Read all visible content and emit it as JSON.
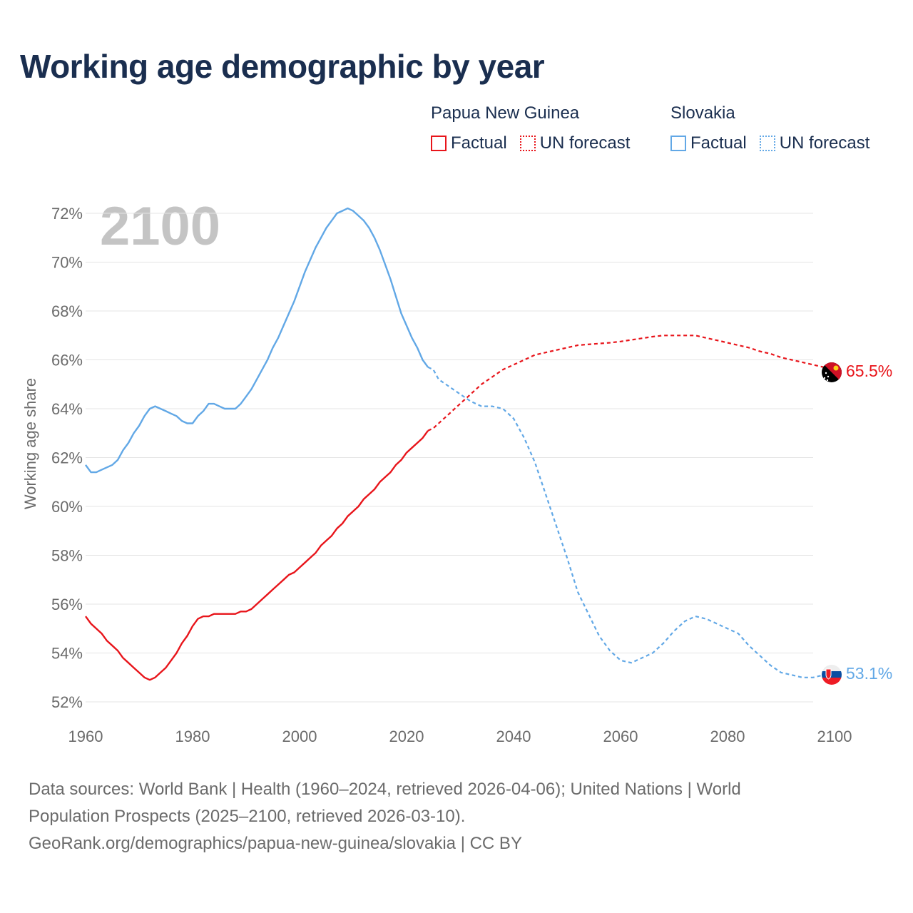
{
  "title": "Working age demographic by year",
  "legend": {
    "groups": [
      {
        "country": "Papua New Guinea",
        "color": "#e8151b",
        "factual": "Factual",
        "forecast": "UN forecast"
      },
      {
        "country": "Slovakia",
        "color": "#62a8e6",
        "factual": "Factual",
        "forecast": "UN forecast"
      }
    ]
  },
  "footer": {
    "line1": "Data sources: World Bank | Health (1960–2024, retrieved 2026-04-06); United Nations | World",
    "line2": "Population Prospects (2025–2100, retrieved 2026-03-10).",
    "line3": "GeoRank.org/demographics/papua-new-guinea/slovakia | CC BY"
  },
  "chart_data": {
    "type": "line",
    "title": "Working age demographic by year",
    "ylabel": "Working age share",
    "xlabel": "",
    "year_watermark": "2100",
    "xlim": [
      1960,
      2100
    ],
    "ylim": [
      52,
      72
    ],
    "x_ticks": [
      1960,
      1980,
      2000,
      2020,
      2040,
      2060,
      2080,
      2100
    ],
    "y_ticks": [
      52,
      54,
      56,
      58,
      60,
      62,
      64,
      66,
      68,
      70,
      72
    ],
    "y_tick_labels": [
      "52%",
      "54%",
      "56%",
      "58%",
      "60%",
      "62%",
      "64%",
      "66%",
      "68%",
      "70%",
      "72%"
    ],
    "grid": true,
    "factual_end_year": 2024,
    "series": [
      {
        "name": "Papua New Guinea",
        "color": "#e8151b",
        "end_label": "65.5%",
        "factual": [
          [
            1960,
            55.5
          ],
          [
            1961,
            55.2
          ],
          [
            1962,
            55.0
          ],
          [
            1963,
            54.8
          ],
          [
            1964,
            54.5
          ],
          [
            1965,
            54.3
          ],
          [
            1966,
            54.1
          ],
          [
            1967,
            53.8
          ],
          [
            1968,
            53.6
          ],
          [
            1969,
            53.4
          ],
          [
            1970,
            53.2
          ],
          [
            1971,
            53.0
          ],
          [
            1972,
            52.9
          ],
          [
            1973,
            53.0
          ],
          [
            1974,
            53.2
          ],
          [
            1975,
            53.4
          ],
          [
            1976,
            53.7
          ],
          [
            1977,
            54.0
          ],
          [
            1978,
            54.4
          ],
          [
            1979,
            54.7
          ],
          [
            1980,
            55.1
          ],
          [
            1981,
            55.4
          ],
          [
            1982,
            55.5
          ],
          [
            1983,
            55.5
          ],
          [
            1984,
            55.6
          ],
          [
            1985,
            55.6
          ],
          [
            1986,
            55.6
          ],
          [
            1987,
            55.6
          ],
          [
            1988,
            55.6
          ],
          [
            1989,
            55.7
          ],
          [
            1990,
            55.7
          ],
          [
            1991,
            55.8
          ],
          [
            1992,
            56.0
          ],
          [
            1993,
            56.2
          ],
          [
            1994,
            56.4
          ],
          [
            1995,
            56.6
          ],
          [
            1996,
            56.8
          ],
          [
            1997,
            57.0
          ],
          [
            1998,
            57.2
          ],
          [
            1999,
            57.3
          ],
          [
            2000,
            57.5
          ],
          [
            2001,
            57.7
          ],
          [
            2002,
            57.9
          ],
          [
            2003,
            58.1
          ],
          [
            2004,
            58.4
          ],
          [
            2005,
            58.6
          ],
          [
            2006,
            58.8
          ],
          [
            2007,
            59.1
          ],
          [
            2008,
            59.3
          ],
          [
            2009,
            59.6
          ],
          [
            2010,
            59.8
          ],
          [
            2011,
            60.0
          ],
          [
            2012,
            60.3
          ],
          [
            2013,
            60.5
          ],
          [
            2014,
            60.7
          ],
          [
            2015,
            61.0
          ],
          [
            2016,
            61.2
          ],
          [
            2017,
            61.4
          ],
          [
            2018,
            61.7
          ],
          [
            2019,
            61.9
          ],
          [
            2020,
            62.2
          ],
          [
            2021,
            62.4
          ],
          [
            2022,
            62.6
          ],
          [
            2023,
            62.8
          ],
          [
            2024,
            63.1
          ]
        ],
        "forecast": [
          [
            2024,
            63.1
          ],
          [
            2025,
            63.2
          ],
          [
            2026,
            63.4
          ],
          [
            2027,
            63.6
          ],
          [
            2028,
            63.8
          ],
          [
            2029,
            64.0
          ],
          [
            2030,
            64.2
          ],
          [
            2032,
            64.6
          ],
          [
            2034,
            65.0
          ],
          [
            2036,
            65.3
          ],
          [
            2038,
            65.6
          ],
          [
            2040,
            65.8
          ],
          [
            2042,
            66.0
          ],
          [
            2044,
            66.2
          ],
          [
            2046,
            66.3
          ],
          [
            2048,
            66.4
          ],
          [
            2050,
            66.5
          ],
          [
            2052,
            66.6
          ],
          [
            2055,
            66.65
          ],
          [
            2058,
            66.7
          ],
          [
            2060,
            66.75
          ],
          [
            2063,
            66.85
          ],
          [
            2066,
            66.95
          ],
          [
            2068,
            67.0
          ],
          [
            2070,
            67.0
          ],
          [
            2072,
            67.0
          ],
          [
            2074,
            67.0
          ],
          [
            2076,
            66.9
          ],
          [
            2078,
            66.8
          ],
          [
            2080,
            66.7
          ],
          [
            2082,
            66.6
          ],
          [
            2084,
            66.5
          ],
          [
            2086,
            66.35
          ],
          [
            2088,
            66.25
          ],
          [
            2090,
            66.1
          ],
          [
            2092,
            66.0
          ],
          [
            2094,
            65.9
          ],
          [
            2096,
            65.8
          ],
          [
            2098,
            65.7
          ],
          [
            2100,
            65.55
          ],
          [
            2101,
            65.5
          ]
        ]
      },
      {
        "name": "Slovakia",
        "color": "#62a8e6",
        "end_label": "53.1%",
        "factual": [
          [
            1960,
            61.7
          ],
          [
            1961,
            61.4
          ],
          [
            1962,
            61.4
          ],
          [
            1963,
            61.5
          ],
          [
            1964,
            61.6
          ],
          [
            1965,
            61.7
          ],
          [
            1966,
            61.9
          ],
          [
            1967,
            62.3
          ],
          [
            1968,
            62.6
          ],
          [
            1969,
            63.0
          ],
          [
            1970,
            63.3
          ],
          [
            1971,
            63.7
          ],
          [
            1972,
            64.0
          ],
          [
            1973,
            64.1
          ],
          [
            1974,
            64.0
          ],
          [
            1975,
            63.9
          ],
          [
            1976,
            63.8
          ],
          [
            1977,
            63.7
          ],
          [
            1978,
            63.5
          ],
          [
            1979,
            63.4
          ],
          [
            1980,
            63.4
          ],
          [
            1981,
            63.7
          ],
          [
            1982,
            63.9
          ],
          [
            1983,
            64.2
          ],
          [
            1984,
            64.2
          ],
          [
            1985,
            64.1
          ],
          [
            1986,
            64.0
          ],
          [
            1987,
            64.0
          ],
          [
            1988,
            64.0
          ],
          [
            1989,
            64.2
          ],
          [
            1990,
            64.5
          ],
          [
            1991,
            64.8
          ],
          [
            1992,
            65.2
          ],
          [
            1993,
            65.6
          ],
          [
            1994,
            66.0
          ],
          [
            1995,
            66.5
          ],
          [
            1996,
            66.9
          ],
          [
            1997,
            67.4
          ],
          [
            1998,
            67.9
          ],
          [
            1999,
            68.4
          ],
          [
            2000,
            69.0
          ],
          [
            2001,
            69.6
          ],
          [
            2002,
            70.1
          ],
          [
            2003,
            70.6
          ],
          [
            2004,
            71.0
          ],
          [
            2005,
            71.4
          ],
          [
            2006,
            71.7
          ],
          [
            2007,
            72.0
          ],
          [
            2008,
            72.1
          ],
          [
            2009,
            72.2
          ],
          [
            2010,
            72.1
          ],
          [
            2011,
            71.9
          ],
          [
            2012,
            71.7
          ],
          [
            2013,
            71.4
          ],
          [
            2014,
            71.0
          ],
          [
            2015,
            70.5
          ],
          [
            2016,
            69.9
          ],
          [
            2017,
            69.3
          ],
          [
            2018,
            68.6
          ],
          [
            2019,
            67.9
          ],
          [
            2020,
            67.4
          ],
          [
            2021,
            66.9
          ],
          [
            2022,
            66.5
          ],
          [
            2023,
            66.0
          ],
          [
            2024,
            65.7
          ]
        ],
        "forecast": [
          [
            2024,
            65.7
          ],
          [
            2025,
            65.6
          ],
          [
            2026,
            65.2
          ],
          [
            2028,
            64.9
          ],
          [
            2030,
            64.6
          ],
          [
            2032,
            64.3
          ],
          [
            2034,
            64.1
          ],
          [
            2036,
            64.1
          ],
          [
            2038,
            64.0
          ],
          [
            2040,
            63.6
          ],
          [
            2042,
            62.8
          ],
          [
            2044,
            61.8
          ],
          [
            2046,
            60.5
          ],
          [
            2048,
            59.2
          ],
          [
            2050,
            57.9
          ],
          [
            2052,
            56.5
          ],
          [
            2054,
            55.6
          ],
          [
            2056,
            54.7
          ],
          [
            2058,
            54.1
          ],
          [
            2060,
            53.7
          ],
          [
            2062,
            53.6
          ],
          [
            2064,
            53.8
          ],
          [
            2066,
            54.0
          ],
          [
            2068,
            54.4
          ],
          [
            2070,
            54.9
          ],
          [
            2072,
            55.3
          ],
          [
            2074,
            55.5
          ],
          [
            2076,
            55.4
          ],
          [
            2078,
            55.2
          ],
          [
            2080,
            55.0
          ],
          [
            2082,
            54.8
          ],
          [
            2084,
            54.3
          ],
          [
            2086,
            53.9
          ],
          [
            2088,
            53.5
          ],
          [
            2090,
            53.2
          ],
          [
            2092,
            53.1
          ],
          [
            2094,
            53.0
          ],
          [
            2096,
            53.0
          ],
          [
            2098,
            53.1
          ],
          [
            2100,
            53.1
          ],
          [
            2101,
            53.1
          ]
        ]
      }
    ]
  }
}
